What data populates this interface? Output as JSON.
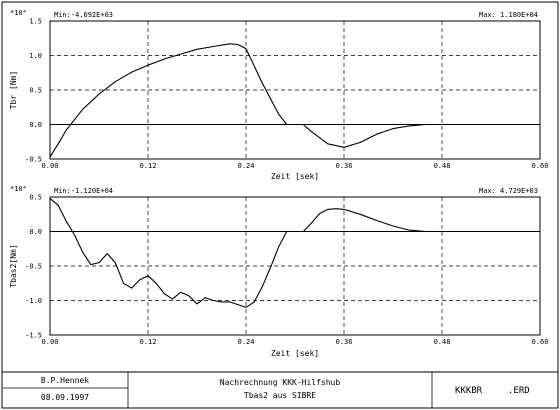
{
  "chart_data": [
    {
      "type": "line",
      "scale_label": "*10⁴",
      "min_label": "Min:-4.692E+03",
      "max_label": "Max: 1.180E+04",
      "ylabel": "Tbr [Nm]",
      "xlabel": "Zeit [sek]",
      "xlim": [
        0,
        0.6
      ],
      "ylim": [
        -0.5,
        1.5
      ],
      "x_ticks": [
        "0.00",
        "0.12",
        "0.24",
        "0.36",
        "0.48",
        "0.60"
      ],
      "y_ticks": [
        "1.5",
        "1.0",
        "0.5",
        "0.0",
        "-0.5"
      ],
      "series": [
        {
          "x": [
            0,
            0.01,
            0.02,
            0.04,
            0.06,
            0.08,
            0.1,
            0.12,
            0.14,
            0.16,
            0.18,
            0.2,
            0.22,
            0.23,
            0.24,
            0.26,
            0.28,
            0.29,
            0.3,
            0.31,
            0.32,
            0.34,
            0.36,
            0.38,
            0.4,
            0.42,
            0.44,
            0.46,
            0.47
          ],
          "y": [
            -0.47,
            -0.28,
            -0.08,
            0.22,
            0.44,
            0.62,
            0.76,
            0.86,
            0.95,
            1.02,
            1.09,
            1.13,
            1.17,
            1.16,
            1.1,
            0.6,
            0.15,
            0.0,
            0.0,
            0.0,
            -0.1,
            -0.28,
            -0.33,
            -0.26,
            -0.14,
            -0.06,
            -0.02,
            0.0,
            0.0
          ]
        }
      ]
    },
    {
      "type": "line",
      "scale_label": "*10⁴",
      "min_label": "Min:-1.120E+04",
      "max_label": "Max: 4.729E+03",
      "ylabel": "Tbas2[Nm]",
      "xlabel": "Zeit [sek]",
      "xlim": [
        0,
        0.6
      ],
      "ylim": [
        -1.5,
        0.5
      ],
      "x_ticks": [
        "0.00",
        "0.12",
        "0.24",
        "0.36",
        "0.48",
        "0.60"
      ],
      "y_ticks": [
        "0.5",
        "0.0",
        "-0.5",
        "-1.0",
        "-1.5"
      ],
      "series": [
        {
          "x": [
            0,
            0.01,
            0.02,
            0.03,
            0.04,
            0.05,
            0.06,
            0.07,
            0.08,
            0.09,
            0.1,
            0.11,
            0.12,
            0.13,
            0.14,
            0.15,
            0.16,
            0.17,
            0.18,
            0.19,
            0.2,
            0.21,
            0.22,
            0.23,
            0.24,
            0.25,
            0.26,
            0.27,
            0.28,
            0.29,
            0.3,
            0.31,
            0.32,
            0.33,
            0.34,
            0.35,
            0.36,
            0.38,
            0.4,
            0.42,
            0.44,
            0.46,
            0.47
          ],
          "y": [
            0.48,
            0.38,
            0.15,
            -0.05,
            -0.3,
            -0.48,
            -0.45,
            -0.32,
            -0.45,
            -0.75,
            -0.82,
            -0.7,
            -0.64,
            -0.75,
            -0.9,
            -0.98,
            -0.88,
            -0.93,
            -1.05,
            -0.96,
            -1.0,
            -1.02,
            -1.02,
            -1.06,
            -1.1,
            -1.02,
            -0.8,
            -0.52,
            -0.22,
            0.0,
            0.0,
            0.0,
            0.12,
            0.26,
            0.32,
            0.33,
            0.32,
            0.25,
            0.16,
            0.08,
            0.02,
            0.0,
            0.0
          ]
        }
      ]
    }
  ],
  "footer": {
    "author": "B.P.Hennek",
    "date": "08.09.1997",
    "title_line1": "Nachrechnung KKK-Hilfshub",
    "title_line2": "Tbas2 aus SIBRE",
    "code": "KKKBR",
    "ext": ".ERD"
  }
}
